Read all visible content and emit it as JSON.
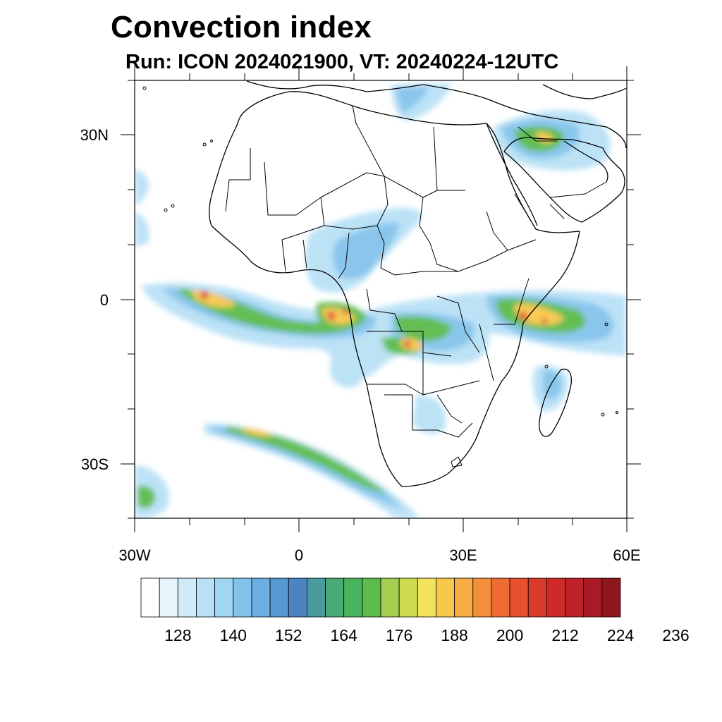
{
  "title": "Convection index",
  "subtitle": "Run: ICON 2024021900,  VT: 20240224-12UTC",
  "map": {
    "extent": {
      "lon_min": -30,
      "lon_max": 60,
      "lat_min": -40,
      "lat_max": 40
    },
    "lat_ticks": [
      {
        "label": "30N"
      },
      {
        "label": "0"
      },
      {
        "label": "30S"
      }
    ],
    "lon_ticks": [
      {
        "label": "30W"
      },
      {
        "label": "0"
      },
      {
        "label": "30E"
      },
      {
        "label": "60E"
      }
    ]
  },
  "colorbar": {
    "colors": [
      "#ffffff",
      "#e6f4fc",
      "#cfeaf8",
      "#b9e1f6",
      "#9fd6f4",
      "#84c4ec",
      "#6aaee2",
      "#5598d2",
      "#4b84c1",
      "#4a9a9e",
      "#4aaa7a",
      "#49b35e",
      "#5cbb4c",
      "#a5cd4f",
      "#cfdc51",
      "#f1e35c",
      "#f8c84d",
      "#f7ac44",
      "#f48f3c",
      "#ee6c34",
      "#e5502d",
      "#db3a2a",
      "#cf2a2a",
      "#be2129",
      "#a81b24",
      "#8e161d"
    ],
    "labels": [
      "128",
      "140",
      "152",
      "164",
      "176",
      "188",
      "200",
      "212",
      "224",
      "236"
    ]
  }
}
